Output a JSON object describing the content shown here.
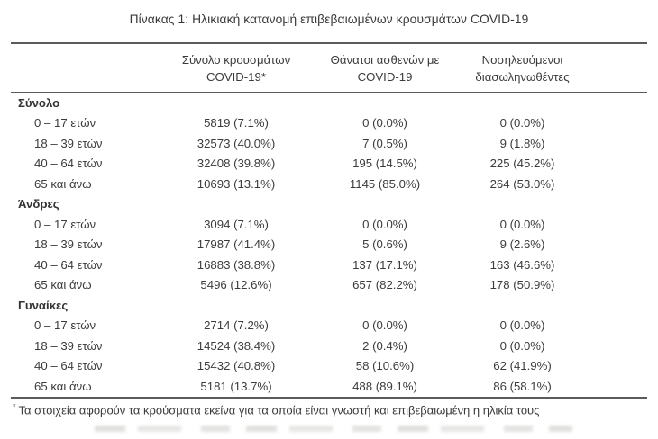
{
  "title": "Πίνακας 1: Ηλικιακή κατανομή επιβεβαιωμένων κρουσμάτων COVID-19",
  "columns": [
    {
      "line1": "Σύνολο κρουσμάτων",
      "line2": "COVID-19*"
    },
    {
      "line1": "Θάνατοι ασθενών με",
      "line2": "COVID-19"
    },
    {
      "line1": "Νοσηλευόμενοι",
      "line2": "διασωληνωθέντες"
    }
  ],
  "sections": [
    {
      "label": "Σύνολο",
      "rows": [
        {
          "age": "0 – 17 ετών",
          "cases": "5819 (7.1%)",
          "deaths": "0 (0.0%)",
          "intubated": "0 (0.0%)"
        },
        {
          "age": "18 – 39 ετών",
          "cases": "32573 (40.0%)",
          "deaths": "7 (0.5%)",
          "intubated": "9 (1.8%)"
        },
        {
          "age": "40 – 64 ετών",
          "cases": "32408 (39.8%)",
          "deaths": "195 (14.5%)",
          "intubated": "225 (45.2%)"
        },
        {
          "age": "65 και άνω",
          "cases": "10693 (13.1%)",
          "deaths": "1145 (85.0%)",
          "intubated": "264 (53.0%)"
        }
      ]
    },
    {
      "label": "Άνδρες",
      "rows": [
        {
          "age": "0 – 17 ετών",
          "cases": "3094 (7.1%)",
          "deaths": "0 (0.0%)",
          "intubated": "0 (0.0%)"
        },
        {
          "age": "18 – 39 ετών",
          "cases": "17987 (41.4%)",
          "deaths": "5 (0.6%)",
          "intubated": "9 (2.6%)"
        },
        {
          "age": "40 – 64 ετών",
          "cases": "16883 (38.8%)",
          "deaths": "137 (17.1%)",
          "intubated": "163 (46.6%)"
        },
        {
          "age": "65 και άνω",
          "cases": "5496 (12.6%)",
          "deaths": "657 (82.2%)",
          "intubated": "178 (50.9%)"
        }
      ]
    },
    {
      "label": "Γυναίκες",
      "rows": [
        {
          "age": "0 – 17 ετών",
          "cases": "2714 (7.2%)",
          "deaths": "0 (0.0%)",
          "intubated": "0 (0.0%)"
        },
        {
          "age": "18 – 39 ετών",
          "cases": "14524 (38.4%)",
          "deaths": "2 (0.4%)",
          "intubated": "0 (0.0%)"
        },
        {
          "age": "40 – 64 ετών",
          "cases": "15432 (40.8%)",
          "deaths": "58 (10.6%)",
          "intubated": "62 (41.9%)"
        },
        {
          "age": "65 και άνω",
          "cases": "5181 (13.7%)",
          "deaths": "488 (89.1%)",
          "intubated": "86 (58.1%)"
        }
      ]
    }
  ],
  "footnote": {
    "marker": "*",
    "text": "Τα στοιχεία αφορούν τα κρούσματα εκείνα για τα οποία είναι γνωστή και επιβεβαιωμένη η ηλικία τους"
  },
  "colors": {
    "text": "#3b3b3d",
    "rule": "#5b5b5e"
  }
}
